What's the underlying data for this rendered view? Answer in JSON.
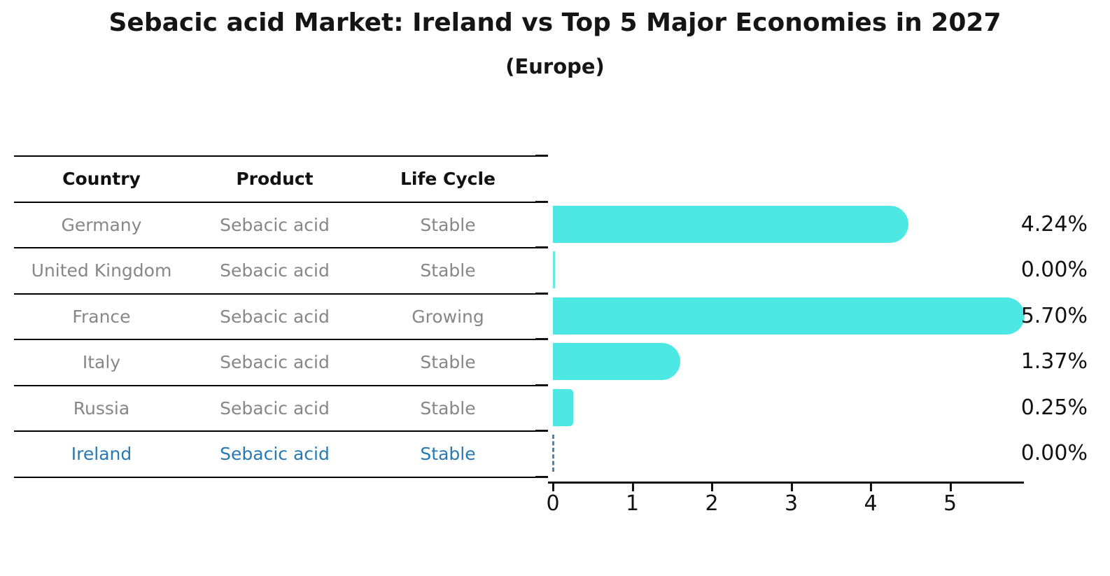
{
  "title": "Sebacic acid Market: Ireland vs Top 5 Major Economies in 2027",
  "subtitle": "(Europe)",
  "table": {
    "headers": [
      "Country",
      "Product",
      "Life Cycle"
    ],
    "rows": [
      {
        "country": "Germany",
        "product": "Sebacic acid",
        "life_cycle": "Stable",
        "highlight": false
      },
      {
        "country": "United Kingdom",
        "product": "Sebacic acid",
        "life_cycle": "Stable",
        "highlight": false
      },
      {
        "country": "France",
        "product": "Sebacic acid",
        "life_cycle": "Growing",
        "highlight": false
      },
      {
        "country": "Italy",
        "product": "Sebacic acid",
        "life_cycle": "Stable",
        "highlight": false
      },
      {
        "country": "Russia",
        "product": "Sebacic acid",
        "life_cycle": "Stable",
        "highlight": true
      }
    ]
  },
  "chart_data": {
    "type": "bar",
    "orientation": "horizontal",
    "title": "Sebacic acid Market: Ireland vs Top 5 Major Economies in 2027 (Europe)",
    "categories": [
      "Germany",
      "United Kingdom",
      "France",
      "Italy",
      "Russia",
      "Ireland"
    ],
    "values": [
      4.24,
      0.0,
      5.7,
      1.37,
      0.25,
      0.0
    ],
    "value_labels": [
      "4.24%",
      "0.00%",
      "5.70%",
      "1.37%",
      "0.25%",
      "0.00%"
    ],
    "xlim": [
      0,
      6
    ],
    "xticks": [
      "0",
      "1",
      "2",
      "3",
      "4",
      "5"
    ],
    "grid": false,
    "legend": "none",
    "bar_color": "#4DE8E3",
    "highlight_text_color": "#2779b5",
    "ireland_marker": "dashed-line-at-zero",
    "ireland_row": {
      "country": "Ireland",
      "product": "Sebacic acid",
      "life_cycle": "Stable"
    }
  }
}
